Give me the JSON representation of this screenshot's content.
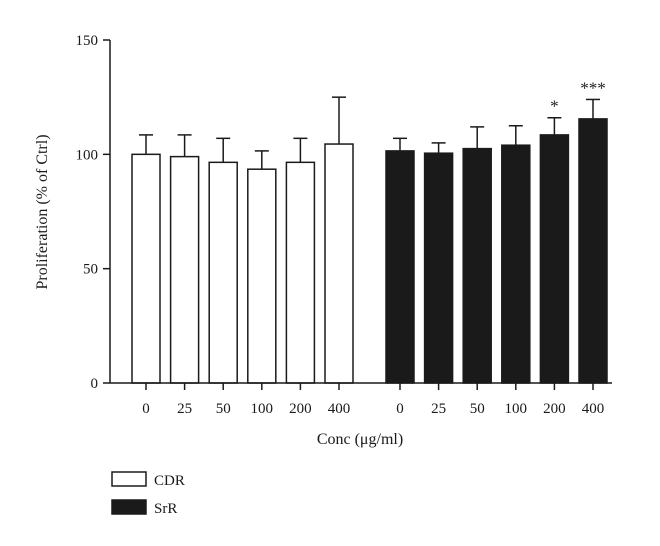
{
  "chart_data": {
    "type": "bar",
    "title": "",
    "xlabel": "Conc (μg/ml)",
    "ylabel": "Proliferation (% of Ctrl)",
    "ylim": [
      0,
      150
    ],
    "yticks": [
      "0",
      "50",
      "100",
      "150"
    ],
    "grid": false,
    "legend_position": "bottom-left",
    "series": [
      {
        "name": "CDR",
        "fill": "#ffffff",
        "stroke": "#1a1a1a",
        "categories": [
          "0",
          "25",
          "50",
          "100",
          "200",
          "400"
        ],
        "values": [
          100,
          99,
          96.5,
          93.5,
          96.5,
          104.5
        ],
        "errors": [
          8.5,
          9.5,
          10.5,
          8,
          10.5,
          20.5
        ],
        "significance": [
          "",
          "",
          "",
          "",
          "",
          ""
        ]
      },
      {
        "name": "SrR",
        "fill": "#1a1a1a",
        "stroke": "#1a1a1a",
        "categories": [
          "0",
          "25",
          "50",
          "100",
          "200",
          "400"
        ],
        "values": [
          101.5,
          100.5,
          102.5,
          104,
          108.5,
          115.5
        ],
        "errors": [
          5.5,
          4.5,
          9.5,
          8.5,
          7.5,
          8.5
        ],
        "significance": [
          "",
          "",
          "",
          "",
          "*",
          "***"
        ]
      }
    ]
  }
}
